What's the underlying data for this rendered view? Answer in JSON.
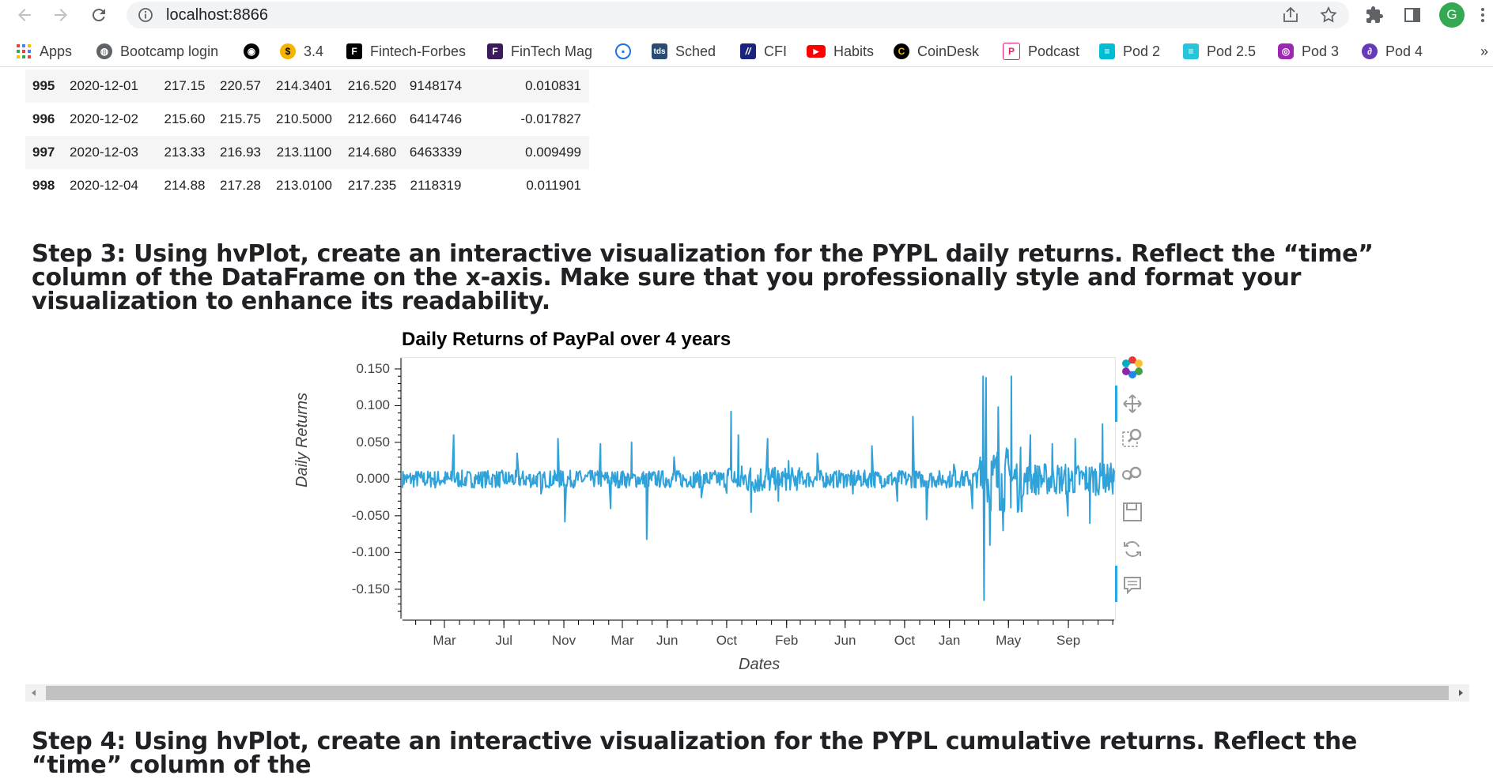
{
  "browser": {
    "url": "localhost:8866",
    "avatar_letter": "G",
    "bookmarks": [
      {
        "label": "Apps",
        "icon": "apps-grid-icon",
        "color": "#4285f4"
      },
      {
        "label": "Bootcamp login",
        "icon": "globe-icon",
        "color": "#5f6368"
      },
      {
        "label": "",
        "icon": "github-icon",
        "color": "#000000"
      },
      {
        "label": "3.4",
        "icon": "coin-icon",
        "color": "#f4b400"
      },
      {
        "label": "Fintech-Forbes",
        "icon": "forbes-icon",
        "color": "#000000"
      },
      {
        "label": "FinTech Mag",
        "icon": "fintech-mag-icon",
        "color": "#3b1b5c"
      },
      {
        "label": "",
        "icon": "circle-logo-icon",
        "color": "#1a73e8"
      },
      {
        "label": "Sched",
        "icon": "tds-icon",
        "color": "#2c4b74"
      },
      {
        "label": "CFI",
        "icon": "cfi-icon",
        "color": "#1a237e"
      },
      {
        "label": "Habits",
        "icon": "youtube-icon",
        "color": "#ff0000"
      },
      {
        "label": "CoinDesk",
        "icon": "coindesk-icon",
        "color": "#000000"
      },
      {
        "label": "Podcast",
        "icon": "podcast-p-icon",
        "color": "#e91e63"
      },
      {
        "label": "Pod 2",
        "icon": "pod-icon",
        "color": "#00bcd4"
      },
      {
        "label": "Pod 2.5",
        "icon": "pod-icon",
        "color": "#26c6da"
      },
      {
        "label": "Pod 3",
        "icon": "apple-podcast-icon",
        "color": "#9c27b0"
      },
      {
        "label": "Pod 4",
        "icon": "pod4-icon",
        "color": "#673ab7"
      }
    ],
    "more_label": "»"
  },
  "table": {
    "rows": [
      {
        "idx": "995",
        "date": "2020-12-01",
        "open": "217.15",
        "high": "220.57",
        "low": "214.3401",
        "close": "216.520",
        "volume": "9148174",
        "ret": "0.010831"
      },
      {
        "idx": "996",
        "date": "2020-12-02",
        "open": "215.60",
        "high": "215.75",
        "low": "210.5000",
        "close": "212.660",
        "volume": "6414746",
        "ret": "-0.017827"
      },
      {
        "idx": "997",
        "date": "2020-12-03",
        "open": "213.33",
        "high": "216.93",
        "low": "213.1100",
        "close": "214.680",
        "volume": "6463339",
        "ret": "0.009499"
      },
      {
        "idx": "998",
        "date": "2020-12-04",
        "open": "214.88",
        "high": "217.28",
        "low": "213.0100",
        "close": "217.235",
        "volume": "2118319",
        "ret": "0.011901"
      }
    ]
  },
  "step3": {
    "heading": "Step 3: Using hvPlot, create an interactive visualization for the PYPL daily returns. Reflect the “time” column of the DataFrame on the x-axis. Make sure that you professionally style and format your visualization to enhance its readability."
  },
  "step4": {
    "heading": "Step 4: Using hvPlot, create an interactive visualization for the PYPL cumulative returns. Reflect the “time” column of the"
  },
  "chart_data": {
    "type": "line",
    "title": "Daily Returns of PayPal over 4 years",
    "xlabel": "Dates",
    "ylabel": "Daily Returns",
    "ylim": [
      -0.19,
      0.165
    ],
    "yticks": [
      "0.150",
      "0.100",
      "0.050",
      "0.000",
      "-0.050",
      "-0.100",
      "-0.150"
    ],
    "ytick_values": [
      0.15,
      0.1,
      0.05,
      0.0,
      -0.05,
      -0.1,
      -0.15
    ],
    "xticks": [
      "Mar",
      "Jul",
      "Nov",
      "Mar",
      "Jun",
      "Oct",
      "Feb",
      "Jun",
      "Oct",
      "Jan",
      "May",
      "Sep"
    ],
    "xtick_dates": [
      "2017-03-01",
      "2017-07-01",
      "2017-11-01",
      "2018-03-01",
      "2018-06-01",
      "2018-10-01",
      "2019-02-01",
      "2019-06-01",
      "2019-10-01",
      "2020-01-01",
      "2020-05-01",
      "2020-09-01"
    ],
    "xrange": [
      "2016-12-05",
      "2020-12-04"
    ],
    "line_color": "#30a2da",
    "grid": false,
    "series": [
      {
        "x": [
          "2016-12-15",
          "2017-02-10",
          "2017-03-20",
          "2017-04-10",
          "2017-07-28",
          "2017-09-15",
          "2017-10-20",
          "2017-11-03",
          "2018-01-15",
          "2018-02-05",
          "2018-03-20",
          "2018-04-20",
          "2018-06-15",
          "2018-08-10",
          "2018-10-10",
          "2018-10-25",
          "2018-11-20",
          "2018-12-24",
          "2019-01-15",
          "2019-02-05",
          "2019-04-05",
          "2019-06-15",
          "2019-07-26",
          "2019-09-15",
          "2019-10-18",
          "2019-11-15",
          "2020-01-10",
          "2020-02-15",
          "2020-03-10",
          "2020-03-12",
          "2020-03-16",
          "2020-03-24",
          "2020-04-10",
          "2020-04-20",
          "2020-05-07",
          "2020-05-20",
          "2020-06-15",
          "2020-07-30",
          "2020-08-30",
          "2020-09-15",
          "2020-10-15",
          "2020-11-10",
          "2020-12-04"
        ],
        "y": [
          0.005,
          -0.012,
          0.06,
          -0.008,
          0.035,
          -0.02,
          0.055,
          -0.058,
          0.048,
          -0.04,
          0.05,
          -0.082,
          0.03,
          -0.025,
          0.092,
          0.06,
          -0.045,
          0.055,
          -0.03,
          0.025,
          0.035,
          -0.02,
          0.045,
          -0.03,
          0.085,
          -0.055,
          0.02,
          -0.04,
          0.14,
          -0.165,
          0.138,
          -0.09,
          0.098,
          -0.07,
          0.14,
          -0.045,
          0.06,
          0.048,
          -0.05,
          0.055,
          -0.06,
          0.075,
          0.012
        ]
      }
    ]
  }
}
